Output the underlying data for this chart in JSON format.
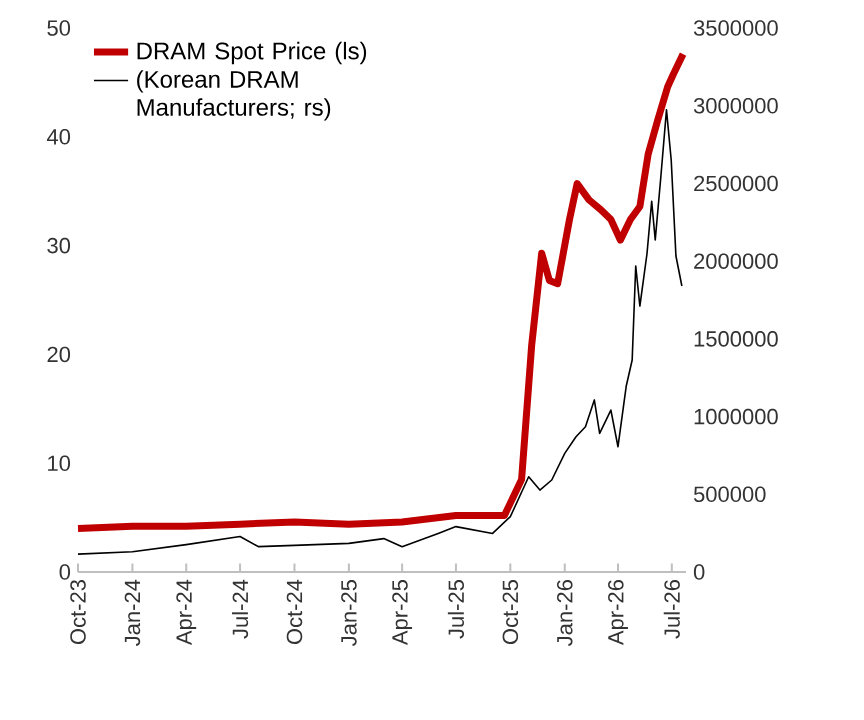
{
  "chart_data": {
    "type": "line",
    "xlim": [
      "2023-10-01",
      "2026-07-25"
    ],
    "xticks": [
      {
        "value": "2023-10-01",
        "label": "Oct-23"
      },
      {
        "value": "2024-01-01",
        "label": "Jan-24"
      },
      {
        "value": "2024-04-01",
        "label": "Apr-24"
      },
      {
        "value": "2024-07-01",
        "label": "Jul-24"
      },
      {
        "value": "2024-10-01",
        "label": "Oct-24"
      },
      {
        "value": "2025-01-01",
        "label": "Jan-25"
      },
      {
        "value": "2025-04-01",
        "label": "Apr-25"
      },
      {
        "value": "2025-07-01",
        "label": "Jul-25"
      },
      {
        "value": "2025-10-01",
        "label": "Oct-25"
      },
      {
        "value": "2026-01-01",
        "label": "Jan-26"
      },
      {
        "value": "2026-04-01",
        "label": "Apr-26"
      },
      {
        "value": "2026-07-01",
        "label": "Jul-26"
      }
    ],
    "ylim": [
      0,
      50
    ],
    "yticks": [
      0,
      10,
      20,
      30,
      40,
      50
    ],
    "y2lim": [
      0,
      3500000
    ],
    "y2ticks": [
      0,
      500000,
      1000000,
      1500000,
      2000000,
      2500000,
      3000000,
      3500000
    ],
    "legend": "top left",
    "grid": false,
    "series": [
      {
        "name": "DRAM Spot Price (ls)",
        "color": "#c00000",
        "x": [
          "2023-10-01",
          "2024-01-01",
          "2024-04-01",
          "2024-07-01",
          "2024-10-01",
          "2025-01-01",
          "2025-04-01",
          "2025-07-01",
          "2025-09-21",
          "2025-10-20",
          "2025-11-06",
          "2025-11-23",
          "2025-12-06",
          "2025-12-20",
          "2026-01-09",
          "2026-01-22",
          "2026-02-11",
          "2026-03-03",
          "2026-03-20",
          "2026-04-05",
          "2026-04-22",
          "2026-05-08",
          "2026-05-22",
          "2026-06-07",
          "2026-06-24",
          "2026-07-04",
          "2026-07-20"
        ],
        "values": [
          4.0,
          4.2,
          4.2,
          4.4,
          4.6,
          4.4,
          4.6,
          5.2,
          5.2,
          8.5,
          20.8,
          29.3,
          26.8,
          26.5,
          32.4,
          35.7,
          34.2,
          33.3,
          32.4,
          30.5,
          32.4,
          33.6,
          38.4,
          41.5,
          44.6,
          45.8,
          47.6
        ]
      },
      {
        "name": "(Korean DRAM Manufacturers; rs)",
        "color": "#000000",
        "axis": "y2",
        "x": [
          "2023-10-01",
          "2024-01-01",
          "2024-04-01",
          "2024-07-01",
          "2024-08-01",
          "2024-10-01",
          "2025-01-01",
          "2025-03-01",
          "2025-04-01",
          "2025-06-01",
          "2025-07-01",
          "2025-09-01",
          "2025-10-01",
          "2025-11-01",
          "2025-11-20",
          "2025-12-10",
          "2026-01-01",
          "2026-01-20",
          "2026-02-05",
          "2026-02-20",
          "2026-03-01",
          "2026-03-20",
          "2026-04-01",
          "2026-04-15",
          "2026-04-25",
          "2026-05-01",
          "2026-05-08",
          "2026-05-20",
          "2026-05-28",
          "2026-06-03",
          "2026-06-12",
          "2026-06-22",
          "2026-06-30",
          "2026-07-08",
          "2026-07-18"
        ],
        "values": [
          115000,
          130000,
          176000,
          228000,
          163000,
          171000,
          184000,
          215000,
          163000,
          248000,
          292000,
          248000,
          356000,
          613000,
          527000,
          592000,
          763000,
          870000,
          935000,
          1107000,
          892000,
          1042000,
          806000,
          1197000,
          1364000,
          1969000,
          1711000,
          2046000,
          2385000,
          2136000,
          2522000,
          2973000,
          2651000,
          2033000,
          1840000
        ]
      }
    ]
  }
}
